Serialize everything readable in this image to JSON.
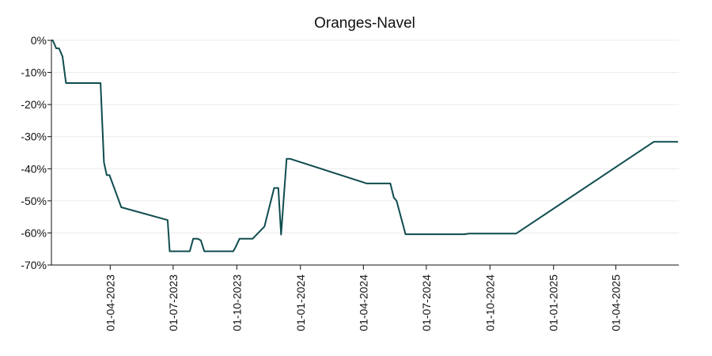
{
  "chart_data": {
    "type": "line",
    "title": "Oranges-Navel",
    "xlabel": "",
    "ylabel": "",
    "y_tick_format": "percent",
    "ylim": [
      -70,
      0
    ],
    "y_ticks": [
      0,
      -10,
      -20,
      -30,
      -40,
      -50,
      -60,
      -70
    ],
    "y_tick_labels": [
      "0%",
      "-10%",
      "-20%",
      "-30%",
      "-40%",
      "-50%",
      "-60%",
      "-70%"
    ],
    "xlim": [
      "2023-01-06",
      "2025-07-01"
    ],
    "x_ticks": [
      "2023-04-01",
      "2023-07-01",
      "2023-10-01",
      "2024-01-01",
      "2024-04-01",
      "2024-07-01",
      "2024-10-01",
      "2025-01-01",
      "2025-04-01"
    ],
    "x_tick_labels": [
      "01-04-2023",
      "01-07-2023",
      "01-10-2023",
      "01-01-2024",
      "01-04-2024",
      "01-07-2024",
      "01-10-2024",
      "01-01-2025",
      "01-04-2025"
    ],
    "grid": "horizontal",
    "legend": "none",
    "series": [
      {
        "color": "#0f4c4f",
        "points": [
          {
            "x": "2023-01-06",
            "y": 0
          },
          {
            "x": "2023-01-08",
            "y": 0
          },
          {
            "x": "2023-01-13",
            "y": -2.5
          },
          {
            "x": "2023-01-17",
            "y": -2.5
          },
          {
            "x": "2023-01-22",
            "y": -5
          },
          {
            "x": "2023-01-27",
            "y": -13.3
          },
          {
            "x": "2023-03-18",
            "y": -13.3
          },
          {
            "x": "2023-03-23",
            "y": -38
          },
          {
            "x": "2023-03-27",
            "y": -42
          },
          {
            "x": "2023-03-31",
            "y": -42
          },
          {
            "x": "2023-04-17",
            "y": -52
          },
          {
            "x": "2023-06-23",
            "y": -56
          },
          {
            "x": "2023-06-26",
            "y": -65.7
          },
          {
            "x": "2023-07-25",
            "y": -65.7
          },
          {
            "x": "2023-07-30",
            "y": -61.8
          },
          {
            "x": "2023-08-05",
            "y": -61.8
          },
          {
            "x": "2023-08-10",
            "y": -62.3
          },
          {
            "x": "2023-08-15",
            "y": -65.7
          },
          {
            "x": "2023-09-26",
            "y": -65.7
          },
          {
            "x": "2023-09-29",
            "y": -64.5
          },
          {
            "x": "2023-10-05",
            "y": -61.8
          },
          {
            "x": "2023-10-24",
            "y": -61.8
          },
          {
            "x": "2023-11-10",
            "y": -58
          },
          {
            "x": "2023-11-24",
            "y": -46
          },
          {
            "x": "2023-11-30",
            "y": -46
          },
          {
            "x": "2023-12-04",
            "y": -60.5
          },
          {
            "x": "2023-12-12",
            "y": -36.9
          },
          {
            "x": "2023-12-17",
            "y": -36.9
          },
          {
            "x": "2024-04-06",
            "y": -44.6
          },
          {
            "x": "2024-05-10",
            "y": -44.6
          },
          {
            "x": "2024-05-15",
            "y": -49
          },
          {
            "x": "2024-05-19",
            "y": -50
          },
          {
            "x": "2024-06-01",
            "y": -60.4
          },
          {
            "x": "2024-08-25",
            "y": -60.4
          },
          {
            "x": "2024-09-01",
            "y": -60.2
          },
          {
            "x": "2024-11-08",
            "y": -60.2
          },
          {
            "x": "2025-05-26",
            "y": -31.6
          },
          {
            "x": "2025-06-30",
            "y": -31.6
          }
        ]
      }
    ]
  }
}
